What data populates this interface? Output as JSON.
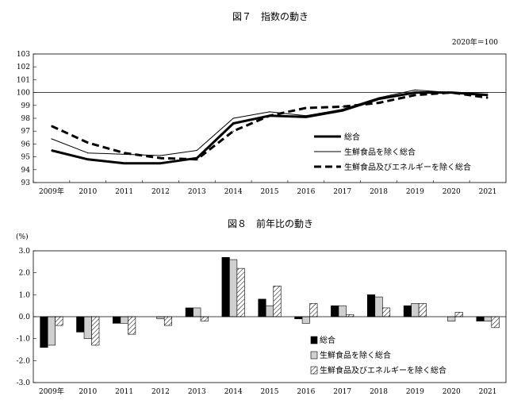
{
  "chart_data": [
    {
      "type": "line",
      "title": "図７　指数の動き",
      "unit_note": "2020年＝100",
      "x": [
        "2009年",
        "2010",
        "2011",
        "2012",
        "2013",
        "2014",
        "2015",
        "2016",
        "2017",
        "2018",
        "2019",
        "2020",
        "2021"
      ],
      "ylim": [
        93,
        103
      ],
      "yticks": [
        93,
        94,
        95,
        96,
        97,
        98,
        99,
        100,
        101,
        102,
        103
      ],
      "reference_line": 100,
      "legend_position": "right",
      "series": [
        {
          "name": "総合",
          "style": "thick",
          "values": [
            95.5,
            94.8,
            94.5,
            94.5,
            94.9,
            97.6,
            98.2,
            98.1,
            98.6,
            99.5,
            100.0,
            100.0,
            99.8
          ]
        },
        {
          "name": "生鮮食品を除く総合",
          "style": "thin",
          "values": [
            96.4,
            95.3,
            95.2,
            95.1,
            95.5,
            98.0,
            98.5,
            98.2,
            98.7,
            99.6,
            100.2,
            100.0,
            100.0
          ]
        },
        {
          "name": "生鮮食品及びエネルギーを除く総合",
          "style": "dashed",
          "values": [
            97.4,
            96.1,
            95.3,
            94.9,
            94.8,
            97.0,
            98.2,
            98.8,
            98.9,
            99.2,
            99.8,
            100.0,
            99.6
          ]
        }
      ]
    },
    {
      "type": "bar",
      "title": "図８　前年比の動き",
      "ylabel": "(%)",
      "categories": [
        "2009年",
        "2010",
        "2011",
        "2012",
        "2013",
        "2014",
        "2015",
        "2016",
        "2017",
        "2018",
        "2019",
        "2020",
        "2021"
      ],
      "ylim": [
        -3.0,
        3.0
      ],
      "yticks": [
        "3.0",
        "2.0",
        "1.0",
        "0.0",
        "-1.0",
        "-2.0",
        "-3.0"
      ],
      "legend_position": "bottom-center",
      "series": [
        {
          "name": "総合",
          "fill": "black",
          "values": [
            -1.4,
            -0.7,
            -0.3,
            0.0,
            0.4,
            2.7,
            0.8,
            -0.1,
            0.5,
            1.0,
            0.5,
            0.0,
            -0.2
          ]
        },
        {
          "name": "生鮮食品を除く総合",
          "fill": "lightgray",
          "values": [
            -1.3,
            -1.0,
            -0.3,
            -0.1,
            0.4,
            2.6,
            0.5,
            -0.3,
            0.5,
            0.9,
            0.6,
            -0.2,
            -0.2
          ]
        },
        {
          "name": "生鮮食品及びエネルギーを除く総合",
          "fill": "hatched",
          "values": [
            -0.4,
            -1.3,
            -0.8,
            -0.4,
            -0.2,
            2.2,
            1.4,
            0.6,
            0.1,
            0.4,
            0.6,
            0.2,
            -0.5
          ]
        }
      ]
    }
  ]
}
